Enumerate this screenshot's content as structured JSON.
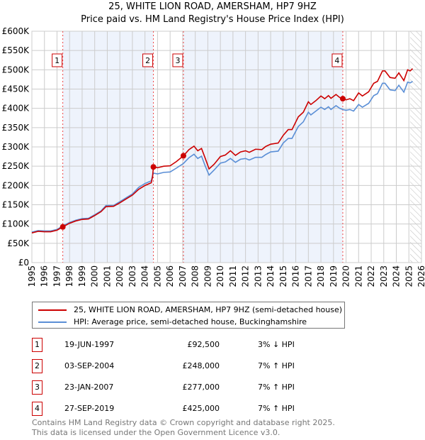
{
  "title": "25, WHITE LION ROAD, AMERSHAM, HP7 9HZ",
  "subtitle": "Price paid vs. HM Land Registry's House Price Index (HPI)",
  "chart_data": {
    "type": "line",
    "title": "25, WHITE LION ROAD, AMERSHAM, HP7 9HZ - Price paid vs. HM Land Registry's House Price Index (HPI)",
    "xlim": [
      1995,
      2026
    ],
    "ylim": [
      0,
      600
    ],
    "x_ticks": [
      "1995",
      "1996",
      "1997",
      "1998",
      "1999",
      "2000",
      "2001",
      "2002",
      "2003",
      "2004",
      "2005",
      "2006",
      "2007",
      "2008",
      "2009",
      "2010",
      "2011",
      "2012",
      "2013",
      "2014",
      "2015",
      "2016",
      "2017",
      "2018",
      "2019",
      "2020",
      "2021",
      "2022",
      "2023",
      "2024",
      "2025",
      "2026"
    ],
    "y_ticks": [
      "£0",
      "£50K",
      "£100K",
      "£150K",
      "£200K",
      "£250K",
      "£300K",
      "£350K",
      "£400K",
      "£450K",
      "£500K",
      "£550K",
      "£600K"
    ],
    "grid": true,
    "series": [
      {
        "name": "25, WHITE LION ROAD, AMERSHAM, HP7 9HZ (semi-detached house)",
        "color": "#cc0000",
        "x": [
          1995,
          1995.5,
          1996,
          1996.5,
          1997,
          1997.46,
          1998,
          1998.5,
          1999,
          1999.5,
          2000,
          2000.5,
          2000.9,
          2001.5,
          2002,
          2002.5,
          2003,
          2003.5,
          2004,
          2004.5,
          2004.6,
          2004.67,
          2005,
          2005.5,
          2006,
          2006.5,
          2007.06,
          2007.5,
          2007.9,
          2008.2,
          2008.5,
          2008.8,
          2009.1,
          2009.5,
          2010,
          2010.4,
          2010.8,
          2011.2,
          2011.6,
          2012,
          2012.3,
          2012.8,
          2013.3,
          2013.6,
          2014,
          2014.6,
          2015,
          2015.4,
          2015.7,
          2016.2,
          2016.6,
          2017,
          2017.2,
          2017.6,
          2018,
          2018.3,
          2018.6,
          2018.8,
          2019.2,
          2019.5,
          2019.74,
          2020,
          2020.3,
          2020.6,
          2021,
          2021.3,
          2021.8,
          2022.2,
          2022.5,
          2022.9,
          2023.1,
          2023.5,
          2023.9,
          2024.2,
          2024.6,
          2024.9,
          2025.1,
          2025.3
        ],
        "y": [
          77,
          81,
          80,
          80,
          84,
          92.5,
          102,
          108,
          112,
          113,
          122,
          132,
          145,
          146,
          155,
          165,
          175,
          190,
          200,
          207,
          222,
          248,
          246,
          250,
          251,
          262,
          277,
          293,
          302,
          290,
          296,
          270,
          243,
          255,
          275,
          279,
          290,
          278,
          287,
          290,
          286,
          294,
          293,
          301,
          307,
          310,
          330,
          345,
          345,
          378,
          390,
          417,
          410,
          420,
          432,
          425,
          433,
          426,
          436,
          428,
          425,
          422,
          425,
          420,
          440,
          432,
          443,
          465,
          470,
          497,
          497,
          480,
          478,
          492,
          472,
          500,
          497,
          503
        ]
      },
      {
        "name": "HPI: Average price, semi-detached house, Buckinghamshire",
        "color": "#5b8fd6",
        "x": [
          1995,
          1995.5,
          1996,
          1996.5,
          1997,
          1997.46,
          1998,
          1998.5,
          1999,
          1999.5,
          2000,
          2000.5,
          2000.9,
          2001.5,
          2002,
          2002.5,
          2003,
          2003.5,
          2004,
          2004.5,
          2004.6,
          2004.67,
          2005,
          2005.5,
          2006,
          2006.5,
          2007.06,
          2007.5,
          2007.9,
          2008.2,
          2008.5,
          2008.8,
          2009.1,
          2009.5,
          2010,
          2010.4,
          2010.8,
          2011.2,
          2011.6,
          2012,
          2012.3,
          2012.8,
          2013.3,
          2013.6,
          2014,
          2014.6,
          2015,
          2015.4,
          2015.7,
          2016.2,
          2016.6,
          2017,
          2017.2,
          2017.6,
          2018,
          2018.3,
          2018.6,
          2018.8,
          2019.2,
          2019.5,
          2019.74,
          2020,
          2020.3,
          2020.6,
          2021,
          2021.3,
          2021.8,
          2022.2,
          2022.5,
          2022.9,
          2023.1,
          2023.5,
          2023.9,
          2024.2,
          2024.6,
          2024.9,
          2025.1,
          2025.3
        ],
        "y": [
          79,
          83,
          82,
          82,
          86,
          95,
          104,
          110,
          114,
          115,
          124,
          134,
          148,
          148,
          158,
          168,
          178,
          195,
          205,
          212,
          225,
          232,
          230,
          234,
          235,
          245,
          257,
          272,
          281,
          270,
          276,
          250,
          227,
          240,
          258,
          261,
          270,
          260,
          268,
          270,
          266,
          273,
          273,
          280,
          287,
          289,
          310,
          322,
          322,
          353,
          365,
          390,
          383,
          393,
          403,
          397,
          404,
          397,
          407,
          400,
          397,
          395,
          397,
          393,
          410,
          403,
          413,
          433,
          438,
          465,
          465,
          448,
          446,
          460,
          442,
          468,
          466,
          470
        ]
      }
    ],
    "sales": [
      {
        "label": "1",
        "x": 1997.46,
        "y": 92.5
      },
      {
        "label": "2",
        "x": 2004.67,
        "y": 248
      },
      {
        "label": "3",
        "x": 2007.06,
        "y": 277
      },
      {
        "label": "4",
        "x": 2019.74,
        "y": 425
      }
    ],
    "shaded_periods": [
      [
        1997.46,
        2004.67
      ],
      [
        2007.06,
        2019.74
      ]
    ],
    "forecast_from": 2025.1
  },
  "legend": {
    "items": [
      {
        "label": "25, WHITE LION ROAD, AMERSHAM, HP7 9HZ (semi-detached house)",
        "color": "#cc0000"
      },
      {
        "label": "HPI: Average price, semi-detached house, Buckinghamshire",
        "color": "#5b8fd6"
      }
    ]
  },
  "transactions": [
    {
      "num": "1",
      "date": "19-JUN-1997",
      "price": "£92,500",
      "hpi": "3% ↓ HPI"
    },
    {
      "num": "2",
      "date": "03-SEP-2004",
      "price": "£248,000",
      "hpi": "7% ↑ HPI"
    },
    {
      "num": "3",
      "date": "23-JAN-2007",
      "price": "£277,000",
      "hpi": "7% ↑ HPI"
    },
    {
      "num": "4",
      "date": "27-SEP-2019",
      "price": "£425,000",
      "hpi": "7% ↑ HPI"
    }
  ],
  "footer": [
    "Contains HM Land Registry data © Crown copyright and database right 2025.",
    "This data is licensed under the Open Government Licence v3.0."
  ]
}
